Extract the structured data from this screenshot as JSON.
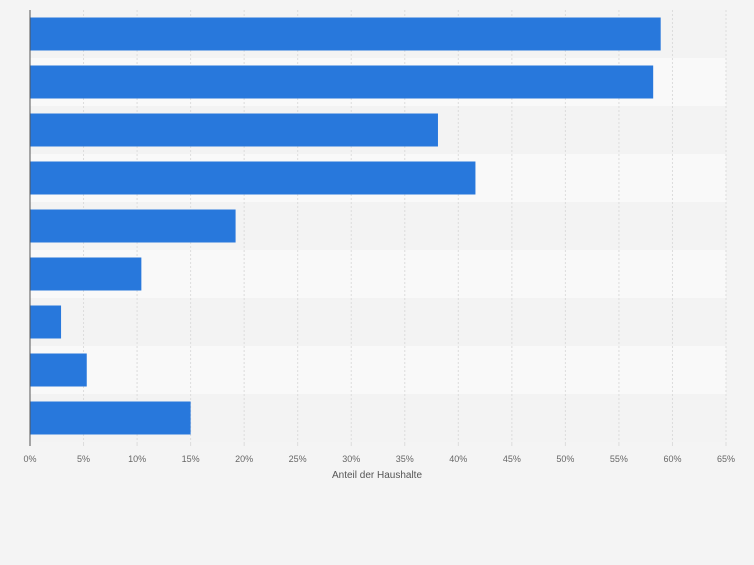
{
  "chart_data": {
    "type": "bar",
    "orientation": "horizontal",
    "categories": [
      "",
      "",
      "",
      "",
      "",
      "",
      "",
      "",
      ""
    ],
    "values": [
      58.9,
      58.2,
      38.1,
      41.6,
      19.2,
      10.4,
      2.9,
      5.3,
      15.0
    ],
    "xlabel": "Anteil der Haushalte",
    "ylabel": "",
    "xlim": [
      0,
      65
    ],
    "xticks": [
      "0%",
      "5%",
      "10%",
      "15%",
      "20%",
      "25%",
      "30%",
      "35%",
      "40%",
      "45%",
      "50%",
      "55%",
      "60%",
      "65%"
    ],
    "grid": true,
    "colors": {
      "bar": "#2878dc",
      "band_light": "#f9f9f9",
      "band_dark": "#f3f3f3",
      "gridline": "#dcdcdc",
      "axis": "#555555",
      "tick_text": "#666666"
    }
  }
}
